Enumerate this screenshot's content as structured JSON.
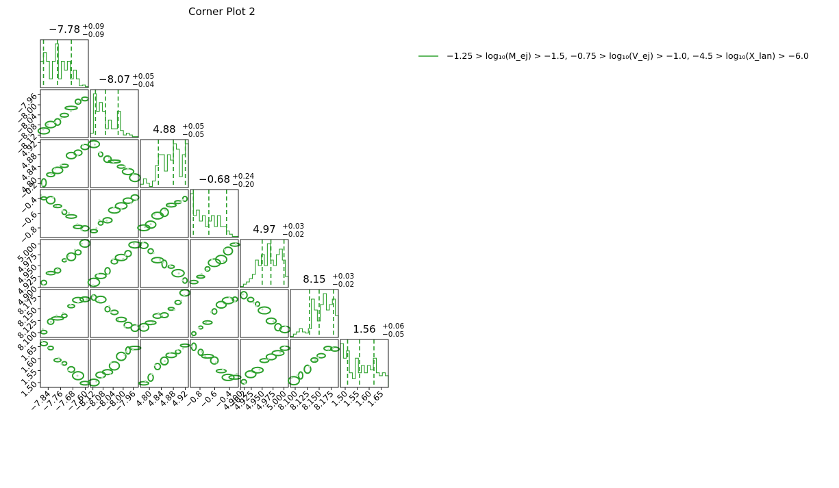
{
  "chart_data": {
    "type": "corner",
    "title": "Corner Plot 2",
    "color": "#2ca02c",
    "legend": {
      "placement": "top-right",
      "label": "−1.25 > log₁₀(M_ej) > −1.5,  −0.75 > log₁₀(V_ej) > −1.0,  −4.5 > log₁₀(X_lan) > −6.0"
    },
    "parameters": [
      {
        "summary": {
          "median": "−7.78",
          "plus": "+0.09",
          "minus": "−0.09"
        },
        "range": [
          -7.89,
          -7.58
        ],
        "ticks": [
          -7.84,
          -7.76,
          -7.68,
          -7.6
        ],
        "tick_labels": [
          "−7.84",
          "−7.76",
          "−7.68",
          "−7.60"
        ],
        "quantiles": [
          -7.87,
          -7.78,
          -7.69
        ],
        "hist": [
          3,
          4,
          3,
          1,
          3,
          5,
          1,
          3,
          2,
          3,
          1,
          2,
          1,
          0.2,
          0.3,
          0.1
        ]
      },
      {
        "summary": {
          "median": "−8.07",
          "plus": "+0.05",
          "minus": "−0.04"
        },
        "range": [
          -8.13,
          -7.94
        ],
        "ticks": [
          -8.12,
          -8.08,
          -8.04,
          -8.0,
          -7.96
        ],
        "tick_labels": [
          "−8.12",
          "−8.08",
          "−8.04",
          "−8.00",
          "−7.96"
        ],
        "quantiles": [
          -8.11,
          -8.07,
          -8.02
        ],
        "hist": [
          0.5,
          5,
          3,
          4,
          3,
          1,
          2,
          1,
          1,
          3,
          0.8,
          0.3,
          0.5,
          0.3,
          0.1,
          0.1
        ]
      },
      {
        "summary": {
          "median": "4.88",
          "plus": "+0.05",
          "minus": "−0.05"
        },
        "range": [
          4.77,
          4.93
        ],
        "ticks": [
          4.8,
          4.84,
          4.88,
          4.92
        ],
        "tick_labels": [
          "4.80",
          "4.84",
          "4.88",
          "4.92"
        ],
        "quantiles": [
          4.83,
          4.88,
          4.92
        ],
        "hist": [
          0.3,
          0.8,
          0.4,
          0.1,
          0.6,
          2,
          3,
          3,
          1.5,
          3,
          2.5,
          4,
          3.5,
          1,
          3,
          4
        ]
      },
      {
        "summary": {
          "median": "−0.68",
          "plus": "+0.24",
          "minus": "−0.20"
        },
        "range": [
          -0.93,
          -0.28
        ],
        "ticks": [
          -0.8,
          -0.6,
          -0.4,
          -0.2
        ],
        "tick_labels": [
          "−0.8",
          "−0.6",
          "−0.4",
          "−0.2"
        ],
        "quantiles": [
          -0.89,
          -0.68,
          -0.44
        ],
        "hist": [
          4,
          2,
          2.5,
          1.5,
          2,
          1,
          1.5,
          2,
          1,
          2,
          1,
          1,
          0.6,
          0.3,
          0.1,
          0.1
        ]
      },
      {
        "summary": {
          "median": "4.97",
          "plus": "+0.03",
          "minus": "−0.02"
        },
        "range": [
          4.9,
          5.01
        ],
        "ticks": [
          4.9,
          4.925,
          4.95,
          4.975,
          5.0
        ],
        "tick_labels": [
          "4.900",
          "4.925",
          "4.950",
          "4.975",
          "5.000"
        ],
        "quantiles": [
          4.95,
          4.97,
          5.0
        ],
        "hist": [
          0.1,
          0.3,
          0.5,
          0.8,
          1.2,
          2.5,
          2,
          3,
          2,
          4,
          2.5,
          2,
          3,
          3.5,
          2.5,
          1
        ]
      },
      {
        "summary": {
          "median": "8.15",
          "plus": "+0.03",
          "minus": "−0.02"
        },
        "range": [
          8.09,
          8.19
        ],
        "ticks": [
          8.1,
          8.125,
          8.15,
          8.175
        ],
        "tick_labels": [
          "8.100",
          "8.125",
          "8.150",
          "8.175"
        ],
        "quantiles": [
          8.13,
          8.15,
          8.18
        ],
        "hist": [
          0.1,
          0.3,
          0.5,
          0.8,
          0.5,
          0.4,
          0.8,
          3.5,
          2.5,
          1.5,
          3,
          4,
          2.5,
          3,
          3.5,
          2
        ]
      },
      {
        "summary": {
          "median": "1.56",
          "plus": "+0.06",
          "minus": "−0.05"
        },
        "range": [
          1.48,
          1.68
        ],
        "ticks": [
          1.5,
          1.55,
          1.6,
          1.65
        ],
        "tick_labels": [
          "1.50",
          "1.55",
          "1.60",
          "1.65"
        ],
        "quantiles": [
          1.51,
          1.56,
          1.62
        ],
        "hist": [
          3,
          2,
          2.5,
          1,
          0.6,
          2,
          1,
          1.5,
          1,
          1.5,
          1.2,
          2,
          1,
          0.8,
          1,
          0.8
        ]
      }
    ]
  }
}
